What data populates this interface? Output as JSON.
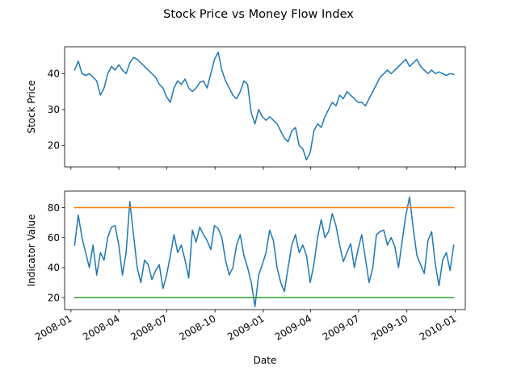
{
  "chart_data": {
    "type": "line",
    "title": "Stock Price vs Money Flow Index",
    "xlabel": "Date",
    "x_range": [
      "2007-12-20",
      "2010-01-20"
    ],
    "x_ticks": [
      "2008-01",
      "2008-04",
      "2008-07",
      "2008-10",
      "2009-01",
      "2009-04",
      "2009-07",
      "2009-10",
      "2010-01"
    ],
    "panels": [
      {
        "ylabel": "Stock Price",
        "ylim": [
          14,
          47.5
        ],
        "y_ticks": [
          "20",
          "30",
          "40"
        ],
        "grid": false,
        "show_x_tick_labels": false,
        "series": [
          {
            "color": "#1f77b4",
            "x": [
              "2008-01-08",
              "2008-01-15",
              "2008-01-22",
              "2008-01-29",
              "2008-02-05",
              "2008-02-12",
              "2008-02-19",
              "2008-02-26",
              "2008-03-04",
              "2008-03-11",
              "2008-03-18",
              "2008-03-25",
              "2008-04-01",
              "2008-04-08",
              "2008-04-15",
              "2008-04-22",
              "2008-04-29",
              "2008-05-06",
              "2008-05-13",
              "2008-05-20",
              "2008-05-27",
              "2008-06-03",
              "2008-06-10",
              "2008-06-17",
              "2008-06-24",
              "2008-07-01",
              "2008-07-08",
              "2008-07-15",
              "2008-07-22",
              "2008-07-29",
              "2008-08-05",
              "2008-08-12",
              "2008-08-19",
              "2008-08-26",
              "2008-09-02",
              "2008-09-09",
              "2008-09-16",
              "2008-09-23",
              "2008-09-30",
              "2008-10-07",
              "2008-10-14",
              "2008-10-21",
              "2008-10-28",
              "2008-11-04",
              "2008-11-11",
              "2008-11-18",
              "2008-11-25",
              "2008-12-02",
              "2008-12-09",
              "2008-12-16",
              "2008-12-23",
              "2008-12-30",
              "2009-01-06",
              "2009-01-13",
              "2009-01-20",
              "2009-01-27",
              "2009-02-03",
              "2009-02-10",
              "2009-02-17",
              "2009-02-24",
              "2009-03-03",
              "2009-03-10",
              "2009-03-17",
              "2009-03-24",
              "2009-03-31",
              "2009-04-07",
              "2009-04-14",
              "2009-04-21",
              "2009-04-28",
              "2009-05-05",
              "2009-05-12",
              "2009-05-19",
              "2009-05-26",
              "2009-06-02",
              "2009-06-09",
              "2009-06-16",
              "2009-06-23",
              "2009-06-30",
              "2009-07-07",
              "2009-07-14",
              "2009-07-21",
              "2009-07-28",
              "2009-08-04",
              "2009-08-11",
              "2009-08-18",
              "2009-08-25",
              "2009-09-01",
              "2009-09-08",
              "2009-09-15",
              "2009-09-22",
              "2009-09-29",
              "2009-10-06",
              "2009-10-13",
              "2009-10-20",
              "2009-10-27",
              "2009-11-03",
              "2009-11-10",
              "2009-11-17",
              "2009-11-24",
              "2009-12-01",
              "2009-12-08",
              "2009-12-15",
              "2009-12-22",
              "2009-12-29"
            ],
            "y": [
              41,
              43.5,
              40,
              39.5,
              40,
              39,
              38,
              34,
              36,
              40,
              42,
              41,
              42.5,
              41,
              40,
              43,
              44.5,
              44,
              43,
              42,
              41,
              40,
              39,
              37,
              36,
              33.5,
              32,
              36,
              38,
              37,
              38.5,
              36,
              35,
              36,
              37.5,
              38,
              36,
              40,
              44,
              46,
              41,
              38,
              36,
              34,
              33,
              35,
              38,
              37,
              29,
              26,
              30,
              28,
              27,
              28,
              27,
              26,
              24,
              22,
              21,
              24,
              25,
              20,
              19,
              16,
              18,
              24,
              26,
              25,
              28,
              30,
              32,
              31,
              34,
              33,
              35,
              34,
              33,
              32,
              32,
              31,
              33,
              35,
              37,
              39,
              40,
              41,
              40,
              41,
              42,
              43,
              44,
              42,
              43,
              44,
              42,
              41,
              40,
              41,
              40,
              40.5,
              40,
              39.5,
              40,
              39.8
            ]
          }
        ]
      },
      {
        "ylabel": "Indicator Value",
        "ylim": [
          12,
          91
        ],
        "y_ticks": [
          "20",
          "40",
          "60",
          "80"
        ],
        "grid": false,
        "show_x_tick_labels": true,
        "series": [
          {
            "color": "#1f77b4",
            "x": [
              "2008-01-08",
              "2008-01-15",
              "2008-01-22",
              "2008-01-29",
              "2008-02-05",
              "2008-02-12",
              "2008-02-19",
              "2008-02-26",
              "2008-03-04",
              "2008-03-11",
              "2008-03-18",
              "2008-03-25",
              "2008-04-01",
              "2008-04-08",
              "2008-04-15",
              "2008-04-22",
              "2008-04-29",
              "2008-05-06",
              "2008-05-13",
              "2008-05-20",
              "2008-05-27",
              "2008-06-03",
              "2008-06-10",
              "2008-06-17",
              "2008-06-24",
              "2008-07-01",
              "2008-07-08",
              "2008-07-15",
              "2008-07-22",
              "2008-07-29",
              "2008-08-05",
              "2008-08-12",
              "2008-08-19",
              "2008-08-26",
              "2008-09-02",
              "2008-09-09",
              "2008-09-16",
              "2008-09-23",
              "2008-09-30",
              "2008-10-07",
              "2008-10-14",
              "2008-10-21",
              "2008-10-28",
              "2008-11-04",
              "2008-11-11",
              "2008-11-18",
              "2008-11-25",
              "2008-12-02",
              "2008-12-09",
              "2008-12-16",
              "2008-12-23",
              "2008-12-30",
              "2009-01-06",
              "2009-01-13",
              "2009-01-20",
              "2009-01-27",
              "2009-02-03",
              "2009-02-10",
              "2009-02-17",
              "2009-02-24",
              "2009-03-03",
              "2009-03-10",
              "2009-03-17",
              "2009-03-24",
              "2009-03-31",
              "2009-04-07",
              "2009-04-14",
              "2009-04-21",
              "2009-04-28",
              "2009-05-05",
              "2009-05-12",
              "2009-05-19",
              "2009-05-26",
              "2009-06-02",
              "2009-06-09",
              "2009-06-16",
              "2009-06-23",
              "2009-06-30",
              "2009-07-07",
              "2009-07-14",
              "2009-07-21",
              "2009-07-28",
              "2009-08-04",
              "2009-08-11",
              "2009-08-18",
              "2009-08-25",
              "2009-09-01",
              "2009-09-08",
              "2009-09-15",
              "2009-09-22",
              "2009-09-29",
              "2009-10-06",
              "2009-10-13",
              "2009-10-20",
              "2009-10-27",
              "2009-11-03",
              "2009-11-10",
              "2009-11-17",
              "2009-11-24",
              "2009-12-01",
              "2009-12-08",
              "2009-12-15",
              "2009-12-22",
              "2009-12-29"
            ],
            "y": [
              55,
              75,
              60,
              50,
              40,
              55,
              35,
              50,
              45,
              60,
              67,
              68,
              55,
              35,
              50,
              84,
              62,
              40,
              30,
              45,
              42,
              32,
              38,
              42,
              26,
              35,
              48,
              62,
              50,
              55,
              45,
              33,
              65,
              57,
              67,
              62,
              58,
              52,
              68,
              66,
              60,
              45,
              35,
              40,
              55,
              62,
              48,
              40,
              30,
              14,
              35,
              42,
              50,
              65,
              58,
              40,
              30,
              24,
              40,
              55,
              62,
              50,
              55,
              48,
              30,
              42,
              60,
              72,
              60,
              64,
              76,
              68,
              55,
              44,
              50,
              56,
              40,
              52,
              62,
              46,
              30,
              40,
              62,
              64,
              65,
              55,
              60,
              54,
              40,
              58,
              75,
              87,
              66,
              48,
              42,
              36,
              58,
              64,
              42,
              28,
              45,
              50,
              38,
              55
            ]
          },
          {
            "color": "#ff7f0e",
            "x": [
              "2008-01-08",
              "2009-12-29"
            ],
            "y": [
              80,
              80
            ]
          },
          {
            "color": "#2ca02c",
            "x": [
              "2008-01-08",
              "2009-12-29"
            ],
            "y": [
              20,
              20
            ]
          }
        ]
      }
    ]
  }
}
